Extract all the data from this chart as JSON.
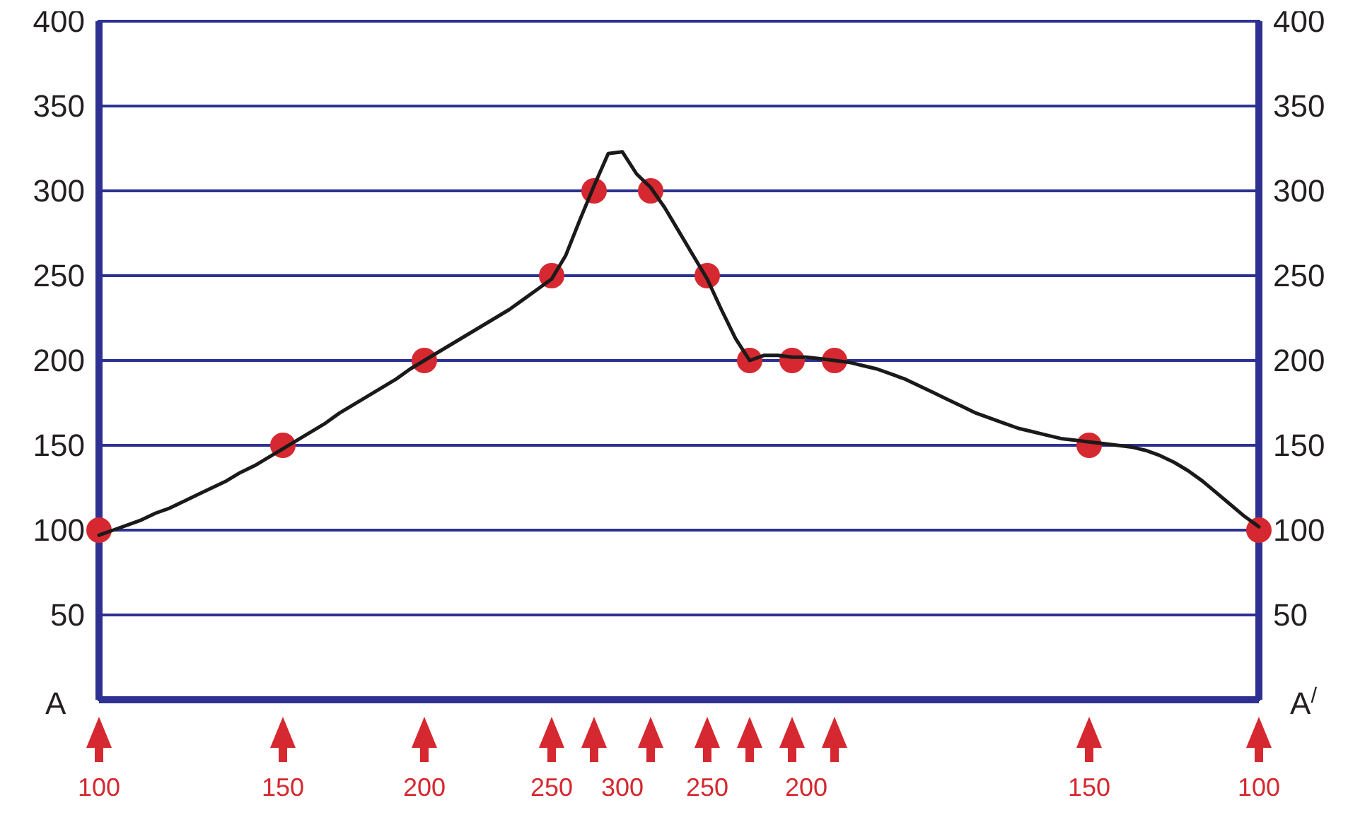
{
  "chart_data": {
    "type": "line",
    "categories": [
      "100",
      null,
      null,
      null,
      null,
      null,
      null,
      null,
      null,
      null,
      null,
      null,
      null,
      "150",
      null,
      null,
      null,
      null,
      null,
      null,
      null,
      null,
      null,
      "200",
      null,
      null,
      null,
      null,
      null,
      null,
      null,
      null,
      "250",
      null,
      null,
      null,
      null,
      "300",
      null,
      null,
      null,
      null,
      null,
      "250",
      null,
      null,
      null,
      null,
      null,
      null,
      "200",
      null,
      null,
      null,
      null,
      null,
      null,
      null,
      null,
      null,
      null,
      null,
      null,
      null,
      null,
      null,
      null,
      null,
      null,
      null,
      "150",
      null,
      null,
      null,
      null,
      null,
      null,
      null,
      null,
      null,
      null,
      null,
      "100"
    ],
    "ylim": [
      0,
      400
    ],
    "yticks": [
      50,
      100,
      150,
      200,
      250,
      300,
      350,
      400
    ],
    "y2lim": [
      0,
      400
    ],
    "y2ticks": [
      50,
      100,
      150,
      200,
      250,
      300,
      350,
      400
    ],
    "grid": "y",
    "annotations": [
      "A",
      "A$^{/}$"
    ],
    "series": [
      {
        "color": "#1a1a1a",
        "marker": "none",
        "values": [
          97,
          100,
          103,
          106,
          110,
          113,
          117,
          121,
          125,
          129,
          134,
          138,
          143,
          148,
          153,
          158,
          163,
          169,
          174,
          179,
          184,
          189,
          195,
          200,
          205,
          210,
          215,
          220,
          225,
          230,
          236,
          242,
          248,
          262,
          283,
          303,
          322,
          323,
          310,
          302,
          290,
          276,
          262,
          248,
          230,
          213,
          200,
          203,
          203,
          202,
          202,
          201,
          200,
          199,
          197,
          195,
          192,
          189,
          185,
          181,
          177,
          173,
          169,
          166,
          163,
          160,
          158,
          156,
          154,
          153,
          152,
          151,
          150,
          149,
          147,
          144,
          140,
          135,
          129,
          122,
          115,
          108,
          102
        ]
      },
      {
        "type": "scatter",
        "color": "#d62830",
        "marker": "circle",
        "values": [
          100,
          null,
          null,
          null,
          null,
          null,
          null,
          null,
          null,
          null,
          null,
          null,
          null,
          150,
          null,
          null,
          null,
          null,
          null,
          null,
          null,
          null,
          null,
          200,
          null,
          null,
          null,
          null,
          null,
          null,
          null,
          null,
          250,
          null,
          null,
          300,
          null,
          null,
          null,
          300,
          null,
          null,
          null,
          250,
          null,
          null,
          200,
          null,
          null,
          200,
          null,
          null,
          200,
          null,
          null,
          null,
          null,
          null,
          null,
          null,
          null,
          null,
          null,
          null,
          null,
          null,
          null,
          null,
          null,
          null,
          150,
          null,
          null,
          null,
          null,
          null,
          null,
          null,
          null,
          null,
          null,
          null,
          100
        ]
      }
    ]
  }
}
